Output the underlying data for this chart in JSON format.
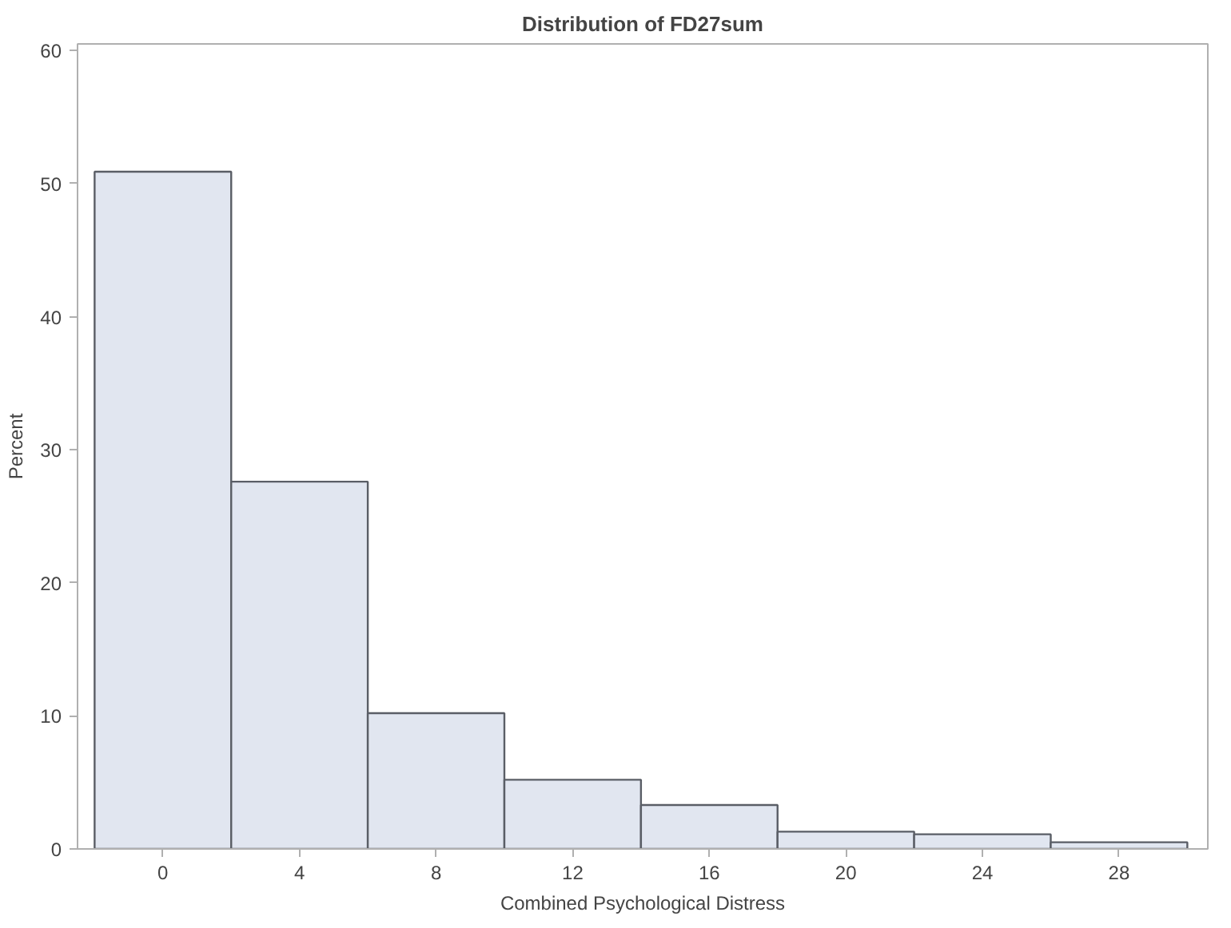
{
  "chart_data": {
    "type": "histogram",
    "title": "Distribution of FD27sum",
    "xlabel": "Combined Psychological Distress",
    "ylabel": "Percent",
    "bins": [
      -2,
      2,
      6,
      10,
      14,
      18,
      22,
      26,
      30
    ],
    "values": [
      50.9,
      27.6,
      10.2,
      5.2,
      3.3,
      1.3,
      1.1,
      0.5
    ],
    "color": "#e1e6f0",
    "xlim": [
      -2.5,
      30.6
    ],
    "ylim": [
      0,
      60.5
    ],
    "xticks": [
      0,
      4,
      8,
      12,
      16,
      20,
      24,
      28
    ],
    "yticks": [
      0,
      10,
      20,
      30,
      40,
      50,
      60
    ],
    "grid": false
  }
}
